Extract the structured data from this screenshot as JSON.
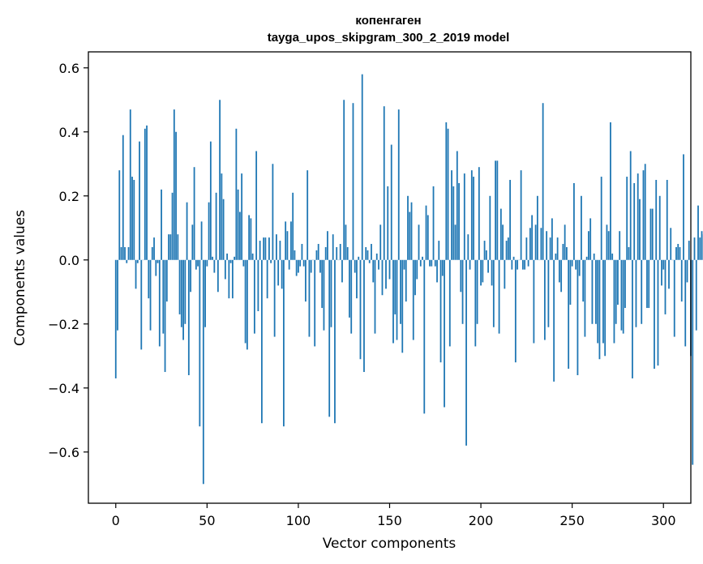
{
  "chart_data": {
    "type": "bar",
    "title_line1": "копенгаген",
    "title_line2": "tayga_upos_skipgram_300_2_2019 model",
    "xlabel": "Vector components",
    "ylabel": "Components values",
    "xlim": [
      -15,
      315
    ],
    "ylim": [
      -0.76,
      0.65
    ],
    "x_ticks": [
      0,
      50,
      100,
      150,
      200,
      250,
      300
    ],
    "x_tick_labels": [
      "0",
      "50",
      "100",
      "150",
      "200",
      "250",
      "300"
    ],
    "y_ticks": [
      -0.6,
      -0.4,
      -0.2,
      0.0,
      0.2,
      0.4,
      0.6
    ],
    "y_tick_labels": [
      "−0.6",
      "−0.4",
      "−0.2",
      "0.0",
      "0.2",
      "0.4",
      "0.6"
    ],
    "bar_color": "#1f77b4",
    "grid": false,
    "values": [
      -0.37,
      -0.22,
      0.28,
      0.04,
      0.39,
      0.04,
      -0.01,
      0.04,
      0.47,
      0.26,
      0.25,
      -0.09,
      -0.01,
      0.37,
      -0.28,
      0.0,
      0.41,
      0.42,
      -0.12,
      -0.22,
      0.04,
      0.07,
      -0.05,
      -0.01,
      -0.27,
      0.22,
      -0.23,
      -0.35,
      -0.13,
      0.08,
      0.08,
      0.21,
      0.47,
      0.4,
      0.08,
      -0.17,
      -0.21,
      -0.25,
      -0.2,
      0.18,
      -0.36,
      -0.1,
      0.11,
      0.29,
      -0.03,
      -0.02,
      -0.52,
      0.12,
      -0.7,
      -0.21,
      -0.02,
      0.18,
      0.37,
      0.01,
      -0.04,
      0.21,
      -0.1,
      0.5,
      0.27,
      0.19,
      -0.06,
      0.02,
      -0.12,
      -0.01,
      -0.12,
      0.01,
      0.41,
      0.22,
      0.15,
      0.27,
      -0.02,
      -0.26,
      -0.28,
      0.14,
      0.13,
      0.02,
      -0.23,
      0.34,
      -0.16,
      0.06,
      -0.51,
      0.07,
      0.07,
      -0.12,
      0.07,
      -0.01,
      0.3,
      -0.24,
      0.08,
      -0.08,
      0.06,
      -0.09,
      -0.52,
      0.12,
      0.09,
      -0.03,
      0.12,
      0.21,
      0.03,
      -0.05,
      -0.04,
      -0.02,
      0.05,
      -0.02,
      -0.13,
      0.28,
      -0.24,
      -0.04,
      0.0,
      -0.27,
      0.03,
      0.05,
      -0.04,
      -0.15,
      -0.22,
      0.04,
      0.09,
      -0.49,
      -0.21,
      0.08,
      -0.51,
      0.04,
      0.0,
      0.05,
      -0.07,
      0.5,
      0.11,
      0.04,
      -0.18,
      -0.23,
      0.49,
      -0.04,
      -0.12,
      0.01,
      -0.31,
      0.58,
      -0.35,
      0.04,
      0.03,
      -0.01,
      0.05,
      -0.07,
      -0.23,
      0.02,
      -0.03,
      0.11,
      -0.11,
      0.48,
      -0.09,
      0.23,
      -0.06,
      0.36,
      -0.26,
      -0.17,
      -0.25,
      0.47,
      -0.2,
      -0.29,
      -0.03,
      -0.13,
      0.2,
      0.15,
      0.18,
      -0.25,
      -0.11,
      -0.06,
      0.11,
      -0.02,
      0.01,
      -0.48,
      0.17,
      0.14,
      -0.02,
      -0.02,
      0.23,
      -0.02,
      -0.07,
      0.06,
      -0.32,
      -0.05,
      -0.46,
      0.43,
      0.41,
      -0.27,
      0.28,
      0.23,
      0.11,
      0.34,
      0.24,
      -0.1,
      -0.2,
      0.27,
      -0.58,
      0.08,
      -0.03,
      0.28,
      0.26,
      -0.27,
      -0.2,
      0.29,
      -0.08,
      -0.07,
      0.06,
      0.03,
      -0.04,
      0.2,
      -0.08,
      -0.21,
      0.31,
      0.31,
      -0.23,
      0.16,
      0.11,
      -0.09,
      0.06,
      0.07,
      0.25,
      -0.03,
      0.01,
      -0.32,
      -0.03,
      0.0,
      0.28,
      -0.03,
      -0.03,
      0.07,
      -0.02,
      0.1,
      0.14,
      -0.26,
      0.11,
      0.2,
      0.0,
      0.1,
      0.49,
      -0.25,
      0.09,
      -0.21,
      0.07,
      0.13,
      -0.38,
      0.02,
      0.07,
      -0.07,
      -0.1,
      0.05,
      0.11,
      0.04,
      -0.34,
      -0.14,
      -0.02,
      0.24,
      -0.03,
      -0.36,
      -0.05,
      0.2,
      -0.13,
      -0.24,
      0.01,
      0.09,
      0.13,
      -0.2,
      0.02,
      -0.2,
      -0.26,
      -0.31,
      0.26,
      -0.26,
      -0.3,
      0.11,
      0.09,
      0.43,
      0.02,
      -0.26,
      -0.2,
      -0.14,
      0.09,
      -0.22,
      -0.23,
      -0.15,
      0.26,
      0.04,
      0.34,
      -0.37,
      0.24,
      -0.21,
      0.27,
      0.19,
      -0.2,
      0.28,
      0.3,
      -0.15,
      -0.15,
      0.16,
      0.16,
      -0.34,
      0.25,
      -0.33,
      0.2,
      -0.08,
      -0.03,
      -0.17,
      0.25,
      -0.09,
      0.1,
      0.0,
      -0.24,
      0.04,
      0.05,
      0.04,
      -0.13,
      0.33,
      -0.27,
      -0.07,
      0.06,
      -0.3,
      -0.64,
      0.07,
      -0.22,
      0.17,
      0.07,
      0.09,
      0.08,
      0.29
    ]
  }
}
